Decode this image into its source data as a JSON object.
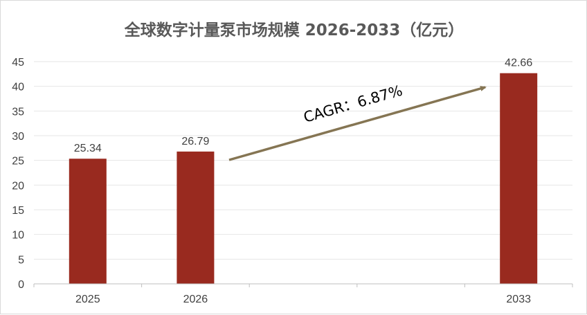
{
  "chart_data": {
    "type": "bar",
    "title": "全球数字计量泵市场规模 2026-2033（亿元）",
    "categories": [
      "2025",
      "2026",
      "",
      "",
      "2033"
    ],
    "values": [
      25.34,
      26.79,
      null,
      null,
      42.66
    ],
    "data_labels": [
      "25.34",
      "26.79",
      "",
      "",
      "42.66"
    ],
    "ylim": [
      0,
      45
    ],
    "yticks": [
      "0",
      "5",
      "10",
      "15",
      "20",
      "25",
      "30",
      "35",
      "40",
      "45"
    ],
    "grid": true,
    "legend": "none",
    "bar_color": "#992a1f",
    "annotation": {
      "text": "CAGR：6.87%",
      "arrow_color": "#857553"
    }
  }
}
